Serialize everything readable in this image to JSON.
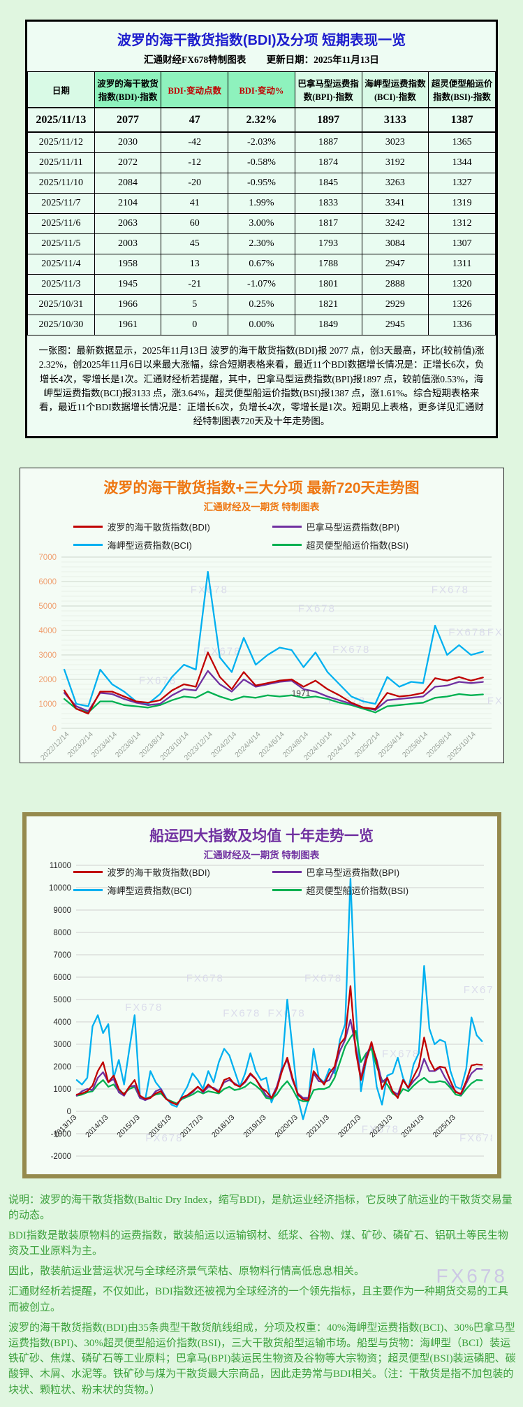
{
  "page": {
    "watermark": "FX678"
  },
  "table_section": {
    "title": "波罗的海干散货指数(BDI)及分项  短期表现一览",
    "subtitle_left": "汇通财经FX678特制图表",
    "subtitle_right": "更新日期：2025年11月13日",
    "columns": [
      {
        "label": "日期",
        "bg": "light",
        "red": false
      },
      {
        "label": "波罗的海干散货指数(BDI)·指数",
        "bg": "strong",
        "red": false
      },
      {
        "label": "BDI·变动点数",
        "bg": "strong",
        "red": true
      },
      {
        "label": "BDI·变动%",
        "bg": "strong",
        "red": true
      },
      {
        "label": "巴拿马型运费指数(BPI)·指数",
        "bg": "light",
        "red": false
      },
      {
        "label": "海岬型运费指数(BCI)·指数",
        "bg": "light",
        "red": false
      },
      {
        "label": "超灵便型船运价指数(BSI)·指数",
        "bg": "light",
        "red": false
      }
    ],
    "rows": [
      [
        "2025/11/13",
        "2077",
        "47",
        "2.32%",
        "1897",
        "3133",
        "1387"
      ],
      [
        "2025/11/12",
        "2030",
        "-42",
        "-2.03%",
        "1887",
        "3023",
        "1365"
      ],
      [
        "2025/11/11",
        "2072",
        "-12",
        "-0.58%",
        "1874",
        "3192",
        "1344"
      ],
      [
        "2025/11/10",
        "2084",
        "-20",
        "-0.95%",
        "1845",
        "3263",
        "1327"
      ],
      [
        "2025/11/7",
        "2104",
        "41",
        "1.99%",
        "1833",
        "3341",
        "1319"
      ],
      [
        "2025/11/6",
        "2063",
        "60",
        "3.00%",
        "1817",
        "3242",
        "1312"
      ],
      [
        "2025/11/5",
        "2003",
        "45",
        "2.30%",
        "1793",
        "3084",
        "1307"
      ],
      [
        "2025/11/4",
        "1958",
        "13",
        "0.67%",
        "1788",
        "2947",
        "1311"
      ],
      [
        "2025/11/3",
        "1945",
        "-21",
        "-1.07%",
        "1801",
        "2888",
        "1320"
      ],
      [
        "2025/10/31",
        "1966",
        "5",
        "0.25%",
        "1821",
        "2929",
        "1326"
      ],
      [
        "2025/10/30",
        "1961",
        "0",
        "0.00%",
        "1849",
        "2945",
        "1336"
      ]
    ],
    "summary": "一张图：最新数据显示，2025年11月13日 波罗的海干散货指数(BDI)报 2077 点，创3天最高，环比(较前值)涨2.32%，创2025年11月6日以来最大涨幅，综合短期表格来看，最近11个BDI数据增长情况是：正增长6次，负增长4次，零增长是1次。汇通财经析若提醒，其中，巴拿马型运费指数(BPI)报1897 点，较前值涨0.53%，海岬型运费指数(BCI)报3133 点，涨3.64%，超灵便型船运价指数(BSI)报1387 点，涨1.61%。综合短期表格来看，最近11个BDI数据增长情况是：正增长6次，负增长4次，零增长是1次。短期见上表格，更多详见汇通财经特制图表720天及十年走势图。"
  },
  "chart_data": [
    {
      "type": "line",
      "title": "波罗的海干散货指数+三大分项  最新720天走势图",
      "subtitle": "汇通财经及一期货  特制图表",
      "title_color": "#ee7611",
      "ylim": [
        0,
        7000
      ],
      "y_tick_step": 1000,
      "y_minor_step": 200,
      "grid_color": "#ccd6cc",
      "grid_minor_color": "#e7efe7",
      "axis_label_color": "#f0a070",
      "x_label_color": "#9aa29a",
      "legend_position": "top",
      "x_ticks": [
        "2022/12/14",
        "2023/2/14",
        "2023/4/14",
        "2023/6/14",
        "2023/8/14",
        "2023/10/14",
        "2023/12/14",
        "2024/2/14",
        "2024/4/14",
        "2024/6/14",
        "2024/8/14",
        "2024/10/14",
        "2024/12/14",
        "2025/2/14",
        "2025/4/14",
        "2025/6/14",
        "2025/8/14",
        "2025/10/14"
      ],
      "x_sample_start": "2022/12/1",
      "x_sample_step_months": 1,
      "series": [
        {
          "name": "波罗的海干散货指数(BDI)",
          "color": "#c00000",
          "values": [
            1550,
            800,
            600,
            1500,
            1500,
            1300,
            1100,
            1050,
            1150,
            1550,
            1800,
            1700,
            3100,
            2100,
            1600,
            2300,
            1750,
            1850,
            1950,
            2000,
            1700,
            1950,
            1600,
            1350,
            1050,
            850,
            790,
            1450,
            1300,
            1350,
            1450,
            2050,
            1950,
            2100,
            1950,
            2077
          ]
        },
        {
          "name": "巴拿马型运费指数(BPI)",
          "color": "#7030a0",
          "values": [
            1450,
            900,
            700,
            1450,
            1400,
            1200,
            1050,
            950,
            1000,
            1350,
            1600,
            1550,
            2350,
            1800,
            1500,
            2000,
            1700,
            1800,
            1900,
            1950,
            1600,
            1500,
            1300,
            1150,
            1000,
            850,
            750,
            1150,
            1200,
            1250,
            1300,
            1700,
            1750,
            1900,
            1850,
            1897
          ]
        },
        {
          "name": "海岬型运费指数(BCI)",
          "color": "#00b0f0",
          "values": [
            2400,
            1000,
            900,
            2400,
            1800,
            1500,
            1100,
            1000,
            1400,
            2100,
            2600,
            2400,
            6400,
            2900,
            2300,
            3700,
            2600,
            3000,
            3300,
            3200,
            2500,
            3100,
            2300,
            1800,
            1300,
            1100,
            1000,
            2100,
            1700,
            1900,
            1850,
            4200,
            3000,
            3400,
            3000,
            3133
          ]
        },
        {
          "name": "超灵便型船运价指数(BSI)",
          "color": "#00b050",
          "values": [
            1200,
            800,
            650,
            1100,
            1100,
            950,
            900,
            850,
            950,
            1150,
            1300,
            1250,
            1500,
            1300,
            1150,
            1300,
            1250,
            1350,
            1300,
            1350,
            1250,
            1300,
            1200,
            1050,
            950,
            800,
            650,
            900,
            950,
            1000,
            1050,
            1250,
            1300,
            1400,
            1350,
            1387
          ]
        }
      ],
      "annotations": [
        {
          "text": "1971",
          "x": "2024/7/1",
          "y": 1310
        }
      ],
      "watermark_text": "FX678",
      "watermark_positions": [
        {
          "x": 0.3,
          "y": 0.21
        },
        {
          "x": 0.55,
          "y": 0.32
        },
        {
          "x": 0.33,
          "y": 0.57
        },
        {
          "x": 0.63,
          "y": 0.56
        },
        {
          "x": 0.86,
          "y": 0.21
        },
        {
          "x": 0.9,
          "y": 0.46
        },
        {
          "x": 0.99,
          "y": 0.46
        },
        {
          "x": 0.18,
          "y": 0.74
        },
        {
          "x": 0.62,
          "y": 0.86
        },
        {
          "x": 0.99,
          "y": 0.86
        }
      ]
    },
    {
      "type": "line",
      "title": "船运四大指数及均值 十年走势一览",
      "subtitle": "汇通财经及一期货 特制图表",
      "title_color": "#7030a0",
      "ylim": [
        -2000,
        11000
      ],
      "y_tick_step": 1000,
      "grid_color": "#cfcfcf",
      "axis_label_color": "#222222",
      "x_label_color": "#222222",
      "x_labels_at_y": 0,
      "legend_position": "overlay",
      "x_ticks": [
        "2013/1/3",
        "2014/1/3",
        "2015/1/3",
        "2016/1/3",
        "2017/1/3",
        "2018/1/3",
        "2019/1/3",
        "2020/1/3",
        "2021/1/3",
        "2022/1/3",
        "2023/1/3",
        "2024/1/3",
        "2025/1/3"
      ],
      "x_sample_start": "2013/1/1",
      "x_sample_step_months": 2,
      "series": [
        {
          "name": "波罗的海干散货指数(BDI)",
          "color": "#c00000",
          "values": [
            750,
            800,
            900,
            1150,
            1800,
            2200,
            1300,
            1600,
            1000,
            750,
            1100,
            1400,
            700,
            560,
            600,
            800,
            900,
            550,
            400,
            300,
            620,
            720,
            900,
            1100,
            900,
            1200,
            1000,
            850,
            1400,
            1500,
            1200,
            1100,
            1350,
            1700,
            1450,
            1050,
            900,
            600,
            1000,
            1800,
            2400,
            1500,
            750,
            530,
            500,
            1800,
            1500,
            1200,
            1700,
            2000,
            3000,
            3300,
            5600,
            2700,
            1400,
            2300,
            3100,
            2200,
            1000,
            1500,
            900,
            600,
            1400,
            1050,
            1550,
            2000,
            3300,
            2300,
            1850,
            2000,
            1950,
            1350,
            850,
            790,
            1350,
            2050,
            2100,
            2077
          ]
        },
        {
          "name": "巴拿马型运费指数(BPI)",
          "color": "#7030a0",
          "values": [
            700,
            900,
            1000,
            950,
            1500,
            1750,
            1300,
            1450,
            850,
            700,
            1100,
            1150,
            600,
            500,
            600,
            900,
            1000,
            550,
            400,
            300,
            600,
            700,
            850,
            1100,
            850,
            1100,
            1050,
            900,
            1300,
            1400,
            1250,
            1100,
            1300,
            1650,
            1450,
            1100,
            700,
            600,
            1100,
            1900,
            2300,
            1400,
            800,
            600,
            600,
            1700,
            1350,
            1300,
            1400,
            1900,
            2700,
            3200,
            4100,
            2900,
            1500,
            2500,
            3000,
            2300,
            1300,
            1500,
            900,
            750,
            1400,
            1050,
            1350,
            1600,
            2350,
            1800,
            1800,
            1950,
            1500,
            1150,
            900,
            750,
            1250,
            1700,
            1900,
            1897
          ]
        },
        {
          "name": "海岬型运费指数(BCI)",
          "color": "#00b0f0",
          "values": [
            1400,
            1200,
            1500,
            3800,
            4300,
            3500,
            3900,
            1500,
            2300,
            1200,
            2800,
            4300,
            700,
            500,
            1800,
            1300,
            1000,
            600,
            300,
            200,
            700,
            1100,
            1700,
            1400,
            1000,
            1800,
            1300,
            2200,
            2800,
            2500,
            1800,
            1100,
            1700,
            2600,
            1800,
            1400,
            1500,
            400,
            1000,
            2000,
            5000,
            2800,
            600,
            -350,
            500,
            2800,
            1500,
            1300,
            1900,
            1700,
            3200,
            3900,
            10400,
            4700,
            900,
            2300,
            3000,
            1100,
            300,
            1600,
            1700,
            2400,
            1500,
            1000,
            2100,
            2600,
            6500,
            3700,
            3000,
            3200,
            3100,
            1800,
            1100,
            1000,
            1900,
            4200,
            3400,
            3133
          ]
        },
        {
          "name": "超灵便型船运价指数(BSI)",
          "color": "#00b050",
          "values": [
            700,
            750,
            850,
            900,
            1200,
            1400,
            1100,
            1200,
            900,
            800,
            1000,
            1100,
            600,
            550,
            650,
            750,
            800,
            550,
            450,
            350,
            550,
            650,
            750,
            900,
            800,
            900,
            850,
            800,
            1000,
            1100,
            950,
            1000,
            1100,
            1300,
            1150,
            950,
            600,
            550,
            750,
            1100,
            1350,
            1000,
            550,
            450,
            450,
            950,
            1000,
            1000,
            1100,
            1500,
            2200,
            2900,
            3300,
            3600,
            2200,
            2600,
            2800,
            2000,
            1400,
            1200,
            800,
            650,
            1000,
            900,
            1150,
            1350,
            1500,
            1300,
            1300,
            1350,
            1300,
            1050,
            750,
            700,
            1000,
            1250,
            1400,
            1387
          ]
        }
      ],
      "annotations": [],
      "watermark_text": "FX678",
      "watermark_positions": [
        {
          "x": 0.27,
          "y": 0.4
        },
        {
          "x": 0.56,
          "y": 0.4
        },
        {
          "x": 0.12,
          "y": 0.5
        },
        {
          "x": 0.36,
          "y": 0.52
        },
        {
          "x": 0.47,
          "y": 0.52
        },
        {
          "x": 0.95,
          "y": 0.44
        },
        {
          "x": 0.75,
          "y": 0.66
        },
        {
          "x": 0.7,
          "y": 0.92
        },
        {
          "x": 0.17,
          "y": 0.95
        },
        {
          "x": 0.94,
          "y": 0.95
        }
      ]
    }
  ],
  "notes": {
    "lines": [
      "说明：波罗的海干散货指数(Baltic Dry Index，缩写BDI)，是航运业经济指标，它反映了航运业的干散货交易量的动态。",
      "BDI指数是散装原物料的运费指数，散装船运以运输钢材、纸浆、谷物、煤、矿砂、磷矿石、铝矾土等民生物资及工业原料为主。",
      "因此，散装航运业营运状况与全球经济景气荣枯、原物料行情高低息息相关。",
      "汇通财经析若提醒，不仅如此，BDI指数还被视为全球经济的一个领先指标，且主要作为一种期货交易的工具而被创立。",
      "波罗的海干散货指数(BDI)由35条典型干散货航线组成，分项及权重：40%海岬型运费指数(BCI)、30%巴拿马型运费指数(BPI)、30%超灵便型船运价指数(BSI)，三大干散货船型运输市场。船型与货物：海岬型（BCI）装运铁矿砂、焦煤、磷矿石等工业原料；巴拿马(BPI)装运民生物资及谷物等大宗物资；超灵便型(BSI)装运磷肥、碳酸钾、木屑、水泥等。铁矿砂与煤为干散货最大宗商品，因此走势常与BDI相关。（注：干散货是指不加包装的块状、颗粒状、粉末状的货物。）"
    ]
  }
}
